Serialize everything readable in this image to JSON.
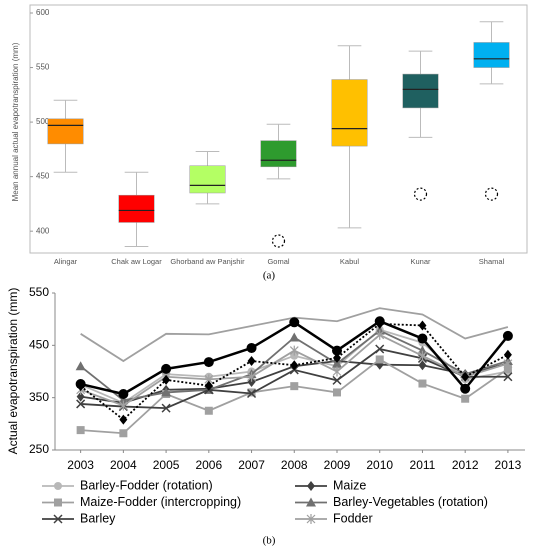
{
  "chart_data": [
    {
      "type": "box",
      "ylabel": "Mean annual actual evapotranspiration (mm)",
      "caption": "(a)",
      "categories": [
        "Alingar",
        "Chak aw Logar",
        "Ghorband aw Panjshir",
        "Gomal",
        "Kabul",
        "Kunar",
        "Shamal"
      ],
      "boxes": [
        {
          "whislo": 454,
          "q1": 480,
          "med": 497,
          "q3": 503,
          "whishi": 520,
          "fliers": [],
          "color": "#ff8c00"
        },
        {
          "whislo": 386,
          "q1": 408,
          "med": 419,
          "q3": 433,
          "whishi": 454,
          "fliers": [],
          "color": "#ff0000"
        },
        {
          "whislo": 425,
          "q1": 435,
          "med": 442,
          "q3": 460,
          "whishi": 473,
          "fliers": [],
          "color": "#b4ff64"
        },
        {
          "whislo": 448,
          "q1": 459,
          "med": 465,
          "q3": 483,
          "whishi": 498,
          "fliers": [
            391
          ],
          "color": "#2e9b2e"
        },
        {
          "whislo": 403,
          "q1": 478,
          "med": 494,
          "q3": 539,
          "whishi": 570,
          "fliers": [],
          "color": "#ffc000"
        },
        {
          "whislo": 486,
          "q1": 513,
          "med": 530,
          "q3": 544,
          "whishi": 565,
          "fliers": [
            434
          ],
          "color": "#1f6060"
        },
        {
          "whislo": 535,
          "q1": 550,
          "med": 558,
          "q3": 573,
          "whishi": 592,
          "fliers": [
            434
          ],
          "color": "#00b0f0"
        }
      ],
      "ylim": [
        380,
        600
      ],
      "yticks": [
        400,
        450,
        500,
        550,
        600
      ]
    },
    {
      "type": "line",
      "ylabel": "Actual evapotranspiration (mm)",
      "caption": "(b)",
      "x": [
        2003,
        2004,
        2005,
        2006,
        2007,
        2008,
        2009,
        2010,
        2011,
        2012,
        2013
      ],
      "xlim": [
        2002.4,
        2013.4
      ],
      "xticks": [
        2003,
        2004,
        2005,
        2006,
        2007,
        2008,
        2009,
        2010,
        2011,
        2012,
        2013
      ],
      "ylim": [
        250,
        550
      ],
      "yticks": [
        250,
        350,
        450,
        550
      ],
      "series": [
        {
          "name": "Barley-Fodder (rotation)",
          "color": "#b8b8b8",
          "marker": "circle",
          "values": [
            375,
            340,
            395,
            390,
            400,
            430,
            410,
            480,
            455,
            385,
            400
          ]
        },
        {
          "name": "Maize",
          "color": "#404040",
          "marker": "diamond",
          "values": [
            352,
            340,
            365,
            367,
            380,
            410,
            420,
            413,
            412,
            395,
            415
          ]
        },
        {
          "name": "Maize-Fodder (intercropping)",
          "color": "#a0a0a0",
          "marker": "square",
          "values": [
            288,
            282,
            357,
            325,
            360,
            372,
            360,
            423,
            377,
            348,
            405
          ]
        },
        {
          "name": "Barley-Vegetables (rotation)",
          "color": "#707070",
          "marker": "triangle",
          "values": [
            410,
            345,
            360,
            365,
            395,
            465,
            415,
            478,
            440,
            395,
            420
          ]
        },
        {
          "name": "Barley",
          "color": "#404040",
          "marker": "x",
          "values": [
            338,
            333,
            330,
            365,
            358,
            403,
            383,
            443,
            425,
            390,
            390
          ]
        },
        {
          "name": "Fodder",
          "color": "#a0a0a0",
          "marker": "asterisk",
          "values": [
            365,
            335,
            390,
            385,
            390,
            440,
            400,
            470,
            430,
            390,
            415
          ]
        },
        {
          "color": "#a0a0a0",
          "marker": "none",
          "values": [
            472,
            420,
            472,
            471,
            487,
            503,
            496,
            521,
            509,
            463,
            485
          ]
        },
        {
          "color": "#000000",
          "marker": "diamond",
          "dash": "dotted",
          "values": [
            372,
            308,
            384,
            373,
            420,
            412,
            426,
            491,
            488,
            390,
            432
          ]
        },
        {
          "color": "#000000",
          "marker": "bigcircle",
          "width": 2.5,
          "values": [
            376,
            357,
            405,
            418,
            445,
            494,
            440,
            496,
            463,
            367,
            468
          ]
        }
      ]
    }
  ]
}
